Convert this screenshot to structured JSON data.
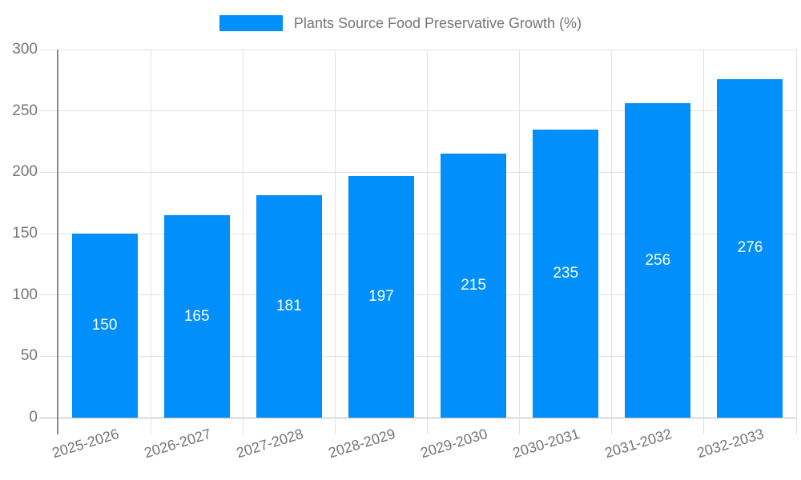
{
  "chart_data": {
    "type": "bar",
    "title": "Plants Source Food Preservative Growth (%)",
    "categories": [
      "2025-2026",
      "2026-2027",
      "2027-2028",
      "2028-2029",
      "2029-2030",
      "2030-2031",
      "2031-2032",
      "2032-2033"
    ],
    "values": [
      150,
      165,
      181,
      197,
      215,
      235,
      256,
      276
    ],
    "xlabel": "",
    "ylabel": "",
    "ylim": [
      0,
      300
    ],
    "yticks": [
      0,
      50,
      100,
      150,
      200,
      250,
      300
    ],
    "grid": true,
    "legend_position": "top",
    "x_label_rotation_deg": -17,
    "colors": {
      "bar": "#008FFB",
      "bar_label": "#ffffff",
      "axis_text": "#757575",
      "grid_line": "#e2e2e2",
      "baseline": "#b6b6b6",
      "axis_line": "#8a8a8a",
      "legend_text": "#757575",
      "background": "#ffffff"
    }
  }
}
